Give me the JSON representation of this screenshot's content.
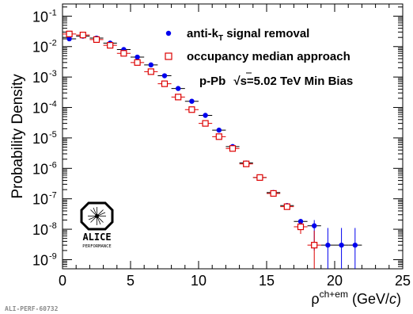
{
  "chart_data": {
    "type": "scatter",
    "xlabel": "ρ",
    "xlabel_sup": "ch+em",
    "xlabel_unit_pre": "(GeV/",
    "xlabel_unit_c": "c",
    "xlabel_unit_post": ")",
    "ylabel": "Probability Density",
    "xlim": [
      0,
      25
    ],
    "ylim_log10": [
      -9.3,
      -0.6
    ],
    "y_log_scale": true,
    "grid": false,
    "legend_position": "top-right",
    "x_ticks": [
      "0",
      "5",
      "10",
      "15",
      "20",
      "25"
    ],
    "y_ticks": [
      {
        "base": "10",
        "exp": "-1"
      },
      {
        "base": "10",
        "exp": "-2"
      },
      {
        "base": "10",
        "exp": "-3"
      },
      {
        "base": "10",
        "exp": "-4"
      },
      {
        "base": "10",
        "exp": "-5"
      },
      {
        "base": "10",
        "exp": "-6"
      },
      {
        "base": "10",
        "exp": "-7"
      },
      {
        "base": "10",
        "exp": "-8"
      },
      {
        "base": "10",
        "exp": "-9"
      }
    ],
    "series": [
      {
        "name": "anti-k",
        "name_sub": "T",
        "name_rest": " signal removal",
        "marker": "filled-circle",
        "color": "#0000ee",
        "bin_halfwidth": 0.5,
        "x": [
          0.5,
          1.5,
          2.5,
          3.5,
          4.5,
          5.5,
          6.5,
          7.5,
          8.5,
          9.5,
          10.5,
          11.5,
          12.5,
          13.5,
          14.5,
          15.5,
          16.5,
          17.5,
          18.5,
          19.5,
          20.5,
          21.5
        ],
        "y": [
          0.018,
          0.022,
          0.019,
          0.013,
          0.008,
          0.0045,
          0.0025,
          0.0011,
          0.00042,
          0.00016,
          5.5e-05,
          1.8e-05,
          5.2e-06,
          1.5e-06,
          5e-07,
          1.6e-07,
          6e-08,
          1.8e-08,
          1.3e-08,
          3e-09,
          3e-09,
          3e-09
        ],
        "y_err_up": [
          0,
          0,
          0,
          0,
          0,
          0,
          0,
          0,
          0,
          0,
          0,
          0,
          0,
          0,
          0,
          0,
          0,
          4e-09,
          7e-09,
          8e-09,
          8e-09,
          8e-09
        ],
        "y_err_down": [
          0,
          0,
          0,
          0,
          0,
          0,
          0,
          0,
          0,
          0,
          0,
          0,
          0,
          0,
          0,
          0,
          0,
          5e-09,
          1.1e-08,
          2.5e-09,
          2.5e-09,
          2.5e-09
        ]
      },
      {
        "name": "occupancy median approach",
        "marker": "open-square",
        "color": "#dd0000",
        "bin_halfwidth": 0.5,
        "x": [
          0.5,
          1.5,
          2.5,
          3.5,
          4.5,
          5.5,
          6.5,
          7.5,
          8.5,
          9.5,
          10.5,
          11.5,
          12.5,
          13.5,
          14.5,
          15.5,
          16.5,
          17.5,
          18.5
        ],
        "y": [
          0.026,
          0.024,
          0.017,
          0.011,
          0.006,
          0.003,
          0.0015,
          0.0006,
          0.00022,
          8.5e-05,
          3e-05,
          1.1e-05,
          4.5e-06,
          1.4e-06,
          5e-07,
          1.5e-07,
          5.5e-08,
          1.2e-08,
          3e-09
        ],
        "y_err_up": [
          0,
          0,
          0,
          0,
          0,
          0,
          0,
          0,
          0,
          0,
          0,
          0,
          0,
          0,
          0,
          0,
          0,
          5e-09,
          6e-09
        ],
        "y_err_down": [
          0,
          0,
          0,
          0,
          0,
          0,
          0,
          0,
          0,
          0,
          0,
          0,
          0,
          0,
          0,
          0,
          0,
          5e-09,
          2.5e-09
        ]
      }
    ],
    "annotation": {
      "system": "p-Pb",
      "sqrt": "√",
      "energy": "s=5.02 TeV Min Bias"
    },
    "logo": {
      "text": "ALICE",
      "subtext": "PERFORMANCE"
    },
    "footer_id": "ALI-PERF-60732"
  }
}
